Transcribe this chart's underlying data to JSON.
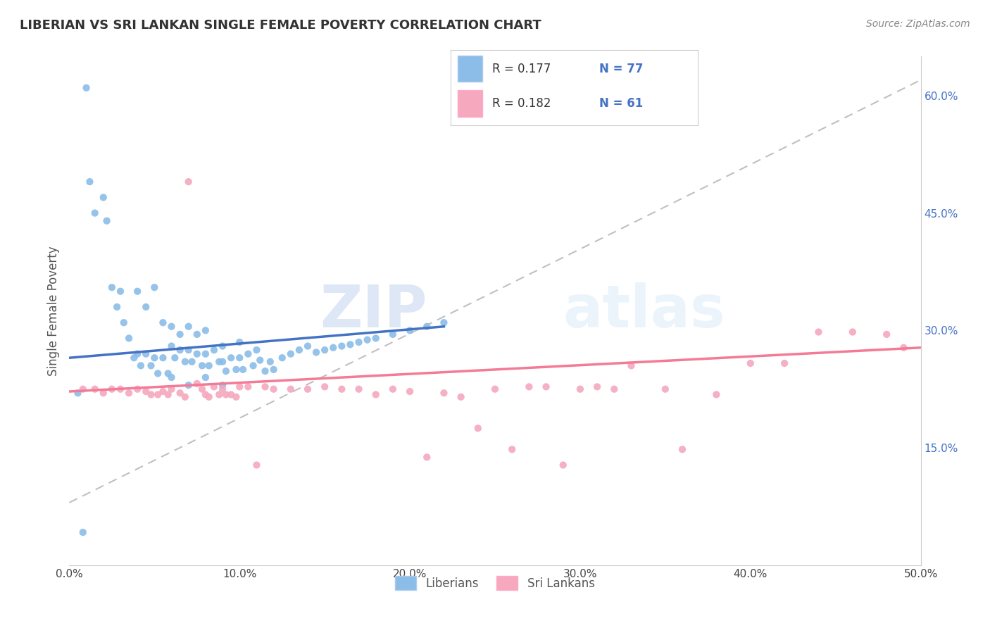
{
  "title": "LIBERIAN VS SRI LANKAN SINGLE FEMALE POVERTY CORRELATION CHART",
  "source": "Source: ZipAtlas.com",
  "ylabel": "Single Female Poverty",
  "xlim": [
    0.0,
    0.5
  ],
  "ylim": [
    0.0,
    0.65
  ],
  "xtick_vals": [
    0.0,
    0.1,
    0.2,
    0.3,
    0.4,
    0.5
  ],
  "xtick_labels": [
    "0.0%",
    "10.0%",
    "20.0%",
    "30.0%",
    "40.0%",
    "50.0%"
  ],
  "ytick_vals": [
    0.15,
    0.3,
    0.45,
    0.6
  ],
  "ytick_labels": [
    "15.0%",
    "30.0%",
    "45.0%",
    "60.0%"
  ],
  "liberian_color": "#8BBDE8",
  "srilankan_color": "#F5A8BE",
  "liberian_line_color": "#4472C4",
  "srilankan_line_color": "#F47A96",
  "diag_color": "#C0C0C0",
  "R_liberian": 0.177,
  "N_liberian": 77,
  "R_srilankan": 0.182,
  "N_srilankan": 61,
  "watermark": "ZIPatlas",
  "background_color": "#FFFFFF",
  "liberian_x": [
    0.005,
    0.01,
    0.012,
    0.015,
    0.02,
    0.022,
    0.025,
    0.028,
    0.03,
    0.032,
    0.035,
    0.038,
    0.04,
    0.04,
    0.042,
    0.045,
    0.045,
    0.048,
    0.05,
    0.05,
    0.052,
    0.055,
    0.055,
    0.058,
    0.06,
    0.06,
    0.062,
    0.065,
    0.065,
    0.068,
    0.07,
    0.07,
    0.072,
    0.075,
    0.075,
    0.078,
    0.08,
    0.08,
    0.082,
    0.085,
    0.088,
    0.09,
    0.09,
    0.092,
    0.095,
    0.098,
    0.1,
    0.1,
    0.102,
    0.105,
    0.108,
    0.11,
    0.112,
    0.115,
    0.118,
    0.12,
    0.125,
    0.13,
    0.135,
    0.14,
    0.145,
    0.15,
    0.155,
    0.16,
    0.165,
    0.17,
    0.175,
    0.18,
    0.19,
    0.2,
    0.21,
    0.22,
    0.06,
    0.07,
    0.008,
    0.08,
    0.09
  ],
  "liberian_y": [
    0.22,
    0.61,
    0.49,
    0.45,
    0.47,
    0.44,
    0.355,
    0.33,
    0.35,
    0.31,
    0.29,
    0.265,
    0.35,
    0.27,
    0.255,
    0.33,
    0.27,
    0.255,
    0.355,
    0.265,
    0.245,
    0.31,
    0.265,
    0.245,
    0.305,
    0.28,
    0.265,
    0.295,
    0.275,
    0.26,
    0.305,
    0.275,
    0.26,
    0.295,
    0.27,
    0.255,
    0.3,
    0.27,
    0.255,
    0.275,
    0.26,
    0.28,
    0.26,
    0.248,
    0.265,
    0.25,
    0.285,
    0.265,
    0.25,
    0.27,
    0.255,
    0.275,
    0.262,
    0.248,
    0.26,
    0.25,
    0.265,
    0.27,
    0.275,
    0.28,
    0.272,
    0.275,
    0.278,
    0.28,
    0.282,
    0.285,
    0.288,
    0.29,
    0.295,
    0.3,
    0.305,
    0.31,
    0.24,
    0.23,
    0.042,
    0.24,
    0.23
  ],
  "srilankan_x": [
    0.008,
    0.015,
    0.02,
    0.025,
    0.03,
    0.035,
    0.04,
    0.045,
    0.048,
    0.052,
    0.055,
    0.058,
    0.06,
    0.065,
    0.068,
    0.07,
    0.075,
    0.078,
    0.08,
    0.082,
    0.085,
    0.088,
    0.09,
    0.092,
    0.095,
    0.098,
    0.1,
    0.105,
    0.11,
    0.115,
    0.12,
    0.13,
    0.14,
    0.15,
    0.16,
    0.17,
    0.18,
    0.19,
    0.2,
    0.21,
    0.22,
    0.23,
    0.24,
    0.25,
    0.26,
    0.27,
    0.28,
    0.29,
    0.3,
    0.31,
    0.32,
    0.33,
    0.35,
    0.36,
    0.38,
    0.4,
    0.42,
    0.44,
    0.46,
    0.48,
    0.49
  ],
  "srilankan_y": [
    0.225,
    0.225,
    0.22,
    0.225,
    0.225,
    0.22,
    0.225,
    0.222,
    0.218,
    0.218,
    0.222,
    0.218,
    0.225,
    0.22,
    0.215,
    0.49,
    0.232,
    0.225,
    0.218,
    0.215,
    0.228,
    0.218,
    0.225,
    0.218,
    0.218,
    0.215,
    0.228,
    0.228,
    0.128,
    0.228,
    0.225,
    0.225,
    0.225,
    0.228,
    0.225,
    0.225,
    0.218,
    0.225,
    0.222,
    0.138,
    0.22,
    0.215,
    0.175,
    0.225,
    0.148,
    0.228,
    0.228,
    0.128,
    0.225,
    0.228,
    0.225,
    0.255,
    0.225,
    0.148,
    0.218,
    0.258,
    0.258,
    0.298,
    0.298,
    0.295,
    0.278
  ]
}
